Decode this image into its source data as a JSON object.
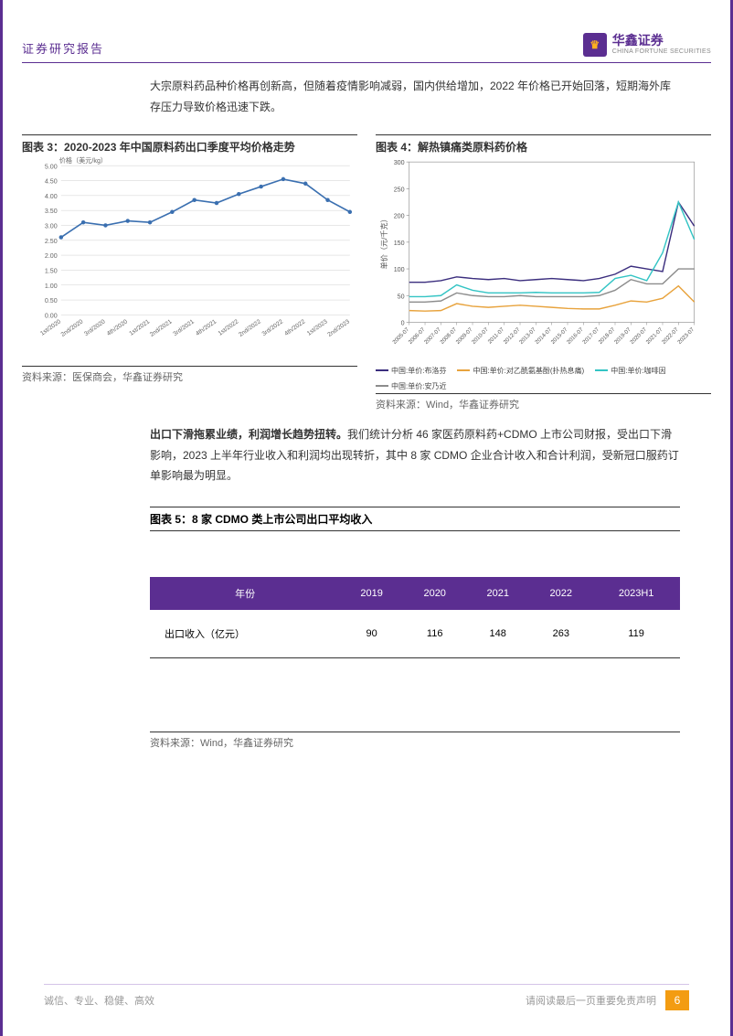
{
  "header": {
    "title": "证券研究报告",
    "logo_cn": "华鑫证券",
    "logo_en": "CHINA FORTUNE SECURITIES",
    "logo_glyph": "♛"
  },
  "para1": "大宗原料药品种价格再创新高，但随着疫情影响减弱，国内供给增加，2022 年价格已开始回落，短期海外库存压力导致价格迅速下跌。",
  "para2_bold": "出口下滑拖累业绩，利润增长趋势扭转。",
  "para2_rest": "我们统计分析 46 家医药原料药+CDMO 上市公司财报，受出口下滑影响，2023 上半年行业收入和利润均出现转折，其中 8 家 CDMO 企业合计收入和合计利润，受新冠口服药订单影响最为明显。",
  "chart3": {
    "title": "图表 3：2020-2023 年中国原料药出口季度平均价格走势",
    "type": "line",
    "yaxis_label": "价格（美元/kg）",
    "xticks": [
      "1st/2020",
      "2nd/2020",
      "3rd/2020",
      "4th/2020",
      "1st/2021",
      "2nd/2021",
      "3rd/2021",
      "4th/2021",
      "1st/2022",
      "2nd/2022",
      "3rd/2022",
      "4th/2022",
      "1st/2023",
      "2nd/2023"
    ],
    "yticks": [
      "0.00",
      "0.50",
      "1.00",
      "1.50",
      "2.00",
      "2.50",
      "3.00",
      "3.50",
      "4.00",
      "4.50",
      "5.00"
    ],
    "ylim": [
      0,
      5
    ],
    "values": [
      2.6,
      3.1,
      3.0,
      3.15,
      3.1,
      3.45,
      3.85,
      3.75,
      4.05,
      4.3,
      4.55,
      4.4,
      3.85,
      3.45
    ],
    "line_color": "#3a6fb0",
    "marker_color": "#3a6fb0",
    "grid_color": "#d9d9d9",
    "bg": "#ffffff",
    "source": "资料来源：医保商会，华鑫证券研究"
  },
  "chart4": {
    "title": "图表 4：解热镇痛类原料药价格",
    "type": "line",
    "yaxis_label": "单价（元/千克）",
    "xticks": [
      "2005-07",
      "2006-07",
      "2007-07",
      "2008-07",
      "2009-07",
      "2010-07",
      "2011-07",
      "2012-07",
      "2013-07",
      "2014-07",
      "2015-07",
      "2016-07",
      "2017-07",
      "2018-07",
      "2019-07",
      "2020-07",
      "2021-07",
      "2022-07",
      "2023-07"
    ],
    "yticks": [
      "0",
      "50",
      "100",
      "150",
      "200",
      "250",
      "300"
    ],
    "ylim": [
      0,
      300
    ],
    "series": [
      {
        "name": "中国:单价:布洛芬",
        "color": "#3b2e7e",
        "values": [
          75,
          75,
          78,
          85,
          82,
          80,
          82,
          78,
          80,
          82,
          80,
          78,
          82,
          90,
          105,
          100,
          95,
          225,
          180
        ]
      },
      {
        "name": "中国:单价:对乙酰氨基酚(扑热息痛)",
        "color": "#e8a33d",
        "values": [
          22,
          21,
          22,
          35,
          30,
          28,
          30,
          32,
          30,
          28,
          26,
          25,
          25,
          32,
          40,
          38,
          45,
          68,
          38
        ]
      },
      {
        "name": "中国:单价:咖啡因",
        "color": "#33c4c4",
        "values": [
          48,
          48,
          50,
          70,
          60,
          55,
          55,
          55,
          56,
          55,
          55,
          55,
          56,
          82,
          88,
          78,
          130,
          225,
          155
        ]
      },
      {
        "name": "中国:单价:安乃近",
        "color": "#8c8c8c",
        "values": [
          38,
          38,
          40,
          55,
          50,
          48,
          48,
          50,
          48,
          48,
          48,
          48,
          50,
          60,
          80,
          72,
          72,
          100,
          100
        ]
      }
    ],
    "grid_color": "#e6e6e6",
    "bg": "#ffffff",
    "source": "资料来源：Wind，华鑫证券研究"
  },
  "table5": {
    "title": "图表 5：8 家 CDMO 类上市公司出口平均收入",
    "header_bg": "#5b2e91",
    "header_fg": "#ffffff",
    "columns": [
      "年份",
      "2019",
      "2020",
      "2021",
      "2022",
      "2023H1"
    ],
    "row_label": "出口收入（亿元）",
    "row_values": [
      "90",
      "116",
      "148",
      "263",
      "119"
    ],
    "source": "资料来源：Wind，华鑫证券研究"
  },
  "footer": {
    "left": "诚信、专业、稳健、高效",
    "disclaimer": "请阅读最后一页重要免责声明",
    "page": "6",
    "page_bg": "#f39c12"
  }
}
